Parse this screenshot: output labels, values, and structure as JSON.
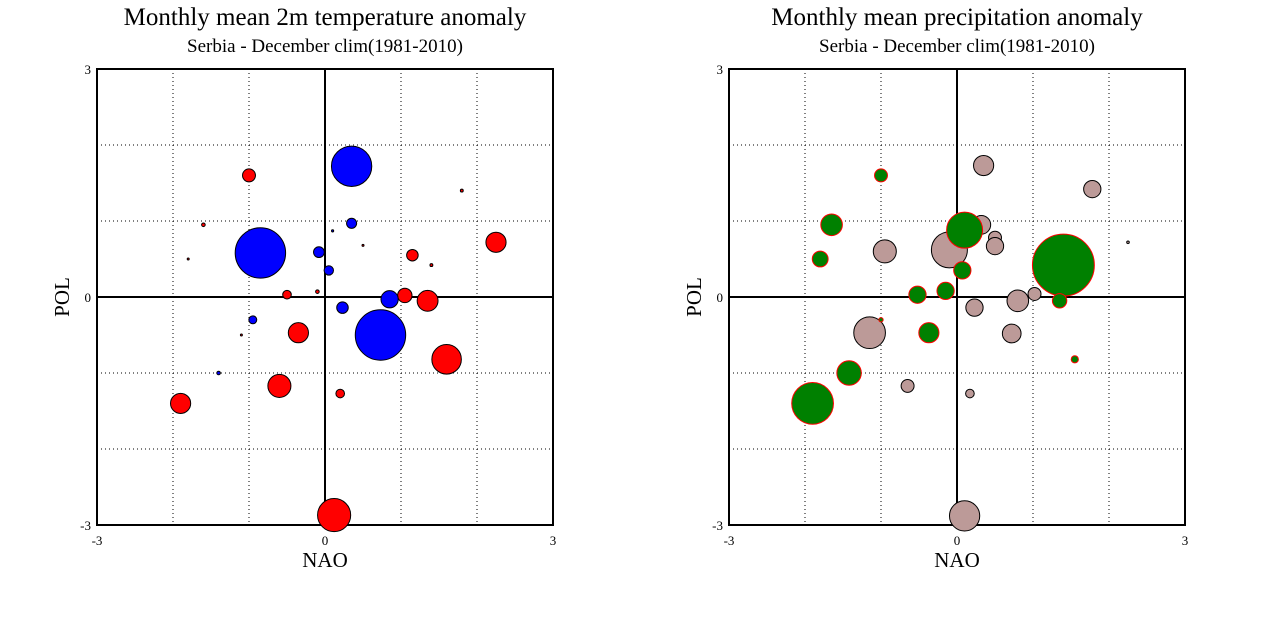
{
  "colors": {
    "temp_warm": "#ff0000",
    "temp_cold": "#0000ff",
    "precip_wet": "#008000",
    "precip_dry": "#bc9a98",
    "precip_wet_outline": "#ff0000",
    "precip_dry_outline": "#000000"
  },
  "chart_data": [
    {
      "type": "scatter",
      "title": "Monthly mean 2m temperature anomaly",
      "subtitle": "Serbia - December  clim(1981-2010)",
      "xlabel": "NAO",
      "ylabel": "POL",
      "xlim": [
        -3,
        3
      ],
      "ylim": [
        -3,
        3
      ],
      "xticks": [
        "-3",
        "0",
        "3"
      ],
      "yticks": [
        "-3",
        "0",
        "3"
      ],
      "grid": "dotted",
      "bubble_size_units": "relative anomaly magnitude",
      "series": [
        {
          "color_key": "temp_warm",
          "points": [
            {
              "x": -1.0,
              "y": 1.6,
              "s": 0.9
            },
            {
              "x": 1.8,
              "y": 1.4,
              "s": 0.2
            },
            {
              "x": -1.6,
              "y": 0.95,
              "s": 0.25
            },
            {
              "x": 2.25,
              "y": 0.72,
              "s": 1.4
            },
            {
              "x": -1.8,
              "y": 0.5,
              "s": 0.08
            },
            {
              "x": 0.5,
              "y": 0.68,
              "s": 0.08
            },
            {
              "x": 1.15,
              "y": 0.55,
              "s": 0.8
            },
            {
              "x": 1.4,
              "y": 0.42,
              "s": 0.2
            },
            {
              "x": -0.5,
              "y": 0.03,
              "s": 0.6
            },
            {
              "x": -0.1,
              "y": 0.07,
              "s": 0.25
            },
            {
              "x": 1.05,
              "y": 0.02,
              "s": 1.0
            },
            {
              "x": 1.35,
              "y": -0.05,
              "s": 1.45
            },
            {
              "x": -1.1,
              "y": -0.5,
              "s": 0.1
            },
            {
              "x": -0.35,
              "y": -0.47,
              "s": 1.4
            },
            {
              "x": 1.6,
              "y": -0.82,
              "s": 2.05
            },
            {
              "x": -0.6,
              "y": -1.17,
              "s": 1.6
            },
            {
              "x": 0.2,
              "y": -1.27,
              "s": 0.6
            },
            {
              "x": -1.9,
              "y": -1.4,
              "s": 1.4
            },
            {
              "x": 0.12,
              "y": -2.87,
              "s": 2.3
            }
          ]
        },
        {
          "color_key": "temp_cold",
          "points": [
            {
              "x": 0.35,
              "y": 1.72,
              "s": 2.8
            },
            {
              "x": 0.35,
              "y": 0.97,
              "s": 0.7
            },
            {
              "x": 0.1,
              "y": 0.87,
              "s": 0.15
            },
            {
              "x": -0.85,
              "y": 0.58,
              "s": 3.5
            },
            {
              "x": -0.08,
              "y": 0.59,
              "s": 0.75
            },
            {
              "x": 0.05,
              "y": 0.35,
              "s": 0.65
            },
            {
              "x": 0.85,
              "y": -0.03,
              "s": 1.2
            },
            {
              "x": 0.23,
              "y": -0.14,
              "s": 0.8
            },
            {
              "x": -0.95,
              "y": -0.3,
              "s": 0.55
            },
            {
              "x": 0.73,
              "y": -0.5,
              "s": 3.5
            },
            {
              "x": -1.4,
              "y": -1.0,
              "s": 0.25
            }
          ]
        }
      ]
    },
    {
      "type": "scatter",
      "title": "Monthly mean precipitation anomaly",
      "subtitle": "Serbia - December  clim(1981-2010)",
      "xlabel": "NAO",
      "ylabel": "POL",
      "xlim": [
        -3,
        3
      ],
      "ylim": [
        -3,
        3
      ],
      "xticks": [
        "-3",
        "0",
        "3"
      ],
      "yticks": [
        "-3",
        "0",
        "3"
      ],
      "grid": "dotted",
      "bubble_size_units": "relative anomaly magnitude",
      "series": [
        {
          "color_key": "precip_dry",
          "outline_key": "precip_dry_outline",
          "points": [
            {
              "x": 0.35,
              "y": 1.73,
              "s": 1.4
            },
            {
              "x": 1.78,
              "y": 1.42,
              "s": 1.2
            },
            {
              "x": 0.32,
              "y": 0.95,
              "s": 1.3
            },
            {
              "x": 0.5,
              "y": 0.78,
              "s": 0.9
            },
            {
              "x": -0.95,
              "y": 0.6,
              "s": 1.6
            },
            {
              "x": -0.1,
              "y": 0.62,
              "s": 2.5
            },
            {
              "x": 0.5,
              "y": 0.67,
              "s": 1.2
            },
            {
              "x": 0.8,
              "y": -0.05,
              "s": 1.5
            },
            {
              "x": 1.02,
              "y": 0.04,
              "s": 0.9
            },
            {
              "x": 0.23,
              "y": -0.14,
              "s": 1.2
            },
            {
              "x": -1.15,
              "y": -0.47,
              "s": 2.2
            },
            {
              "x": 0.72,
              "y": -0.48,
              "s": 1.3
            },
            {
              "x": -0.65,
              "y": -1.17,
              "s": 0.9
            },
            {
              "x": 0.17,
              "y": -1.27,
              "s": 0.6
            },
            {
              "x": 0.1,
              "y": -2.88,
              "s": 2.1
            },
            {
              "x": 2.25,
              "y": 0.72,
              "s": 0.18
            }
          ]
        },
        {
          "color_key": "precip_wet",
          "outline_key": "precip_wet_outline",
          "points": [
            {
              "x": -1.0,
              "y": 1.6,
              "s": 0.9
            },
            {
              "x": -1.65,
              "y": 0.95,
              "s": 1.5
            },
            {
              "x": 0.1,
              "y": 0.88,
              "s": 2.5
            },
            {
              "x": -1.8,
              "y": 0.5,
              "s": 1.1
            },
            {
              "x": 0.07,
              "y": 0.35,
              "s": 1.2
            },
            {
              "x": 1.4,
              "y": 0.42,
              "s": 4.3
            },
            {
              "x": -0.52,
              "y": 0.03,
              "s": 1.2
            },
            {
              "x": -0.15,
              "y": 0.08,
              "s": 1.2
            },
            {
              "x": 1.35,
              "y": -0.05,
              "s": 1.0
            },
            {
              "x": -1.0,
              "y": -0.3,
              "s": 0.3
            },
            {
              "x": -0.37,
              "y": -0.47,
              "s": 1.4
            },
            {
              "x": 1.55,
              "y": -0.82,
              "s": 0.5
            },
            {
              "x": -1.42,
              "y": -1.0,
              "s": 1.7
            },
            {
              "x": -1.9,
              "y": -1.4,
              "s": 2.9
            }
          ]
        }
      ]
    }
  ]
}
